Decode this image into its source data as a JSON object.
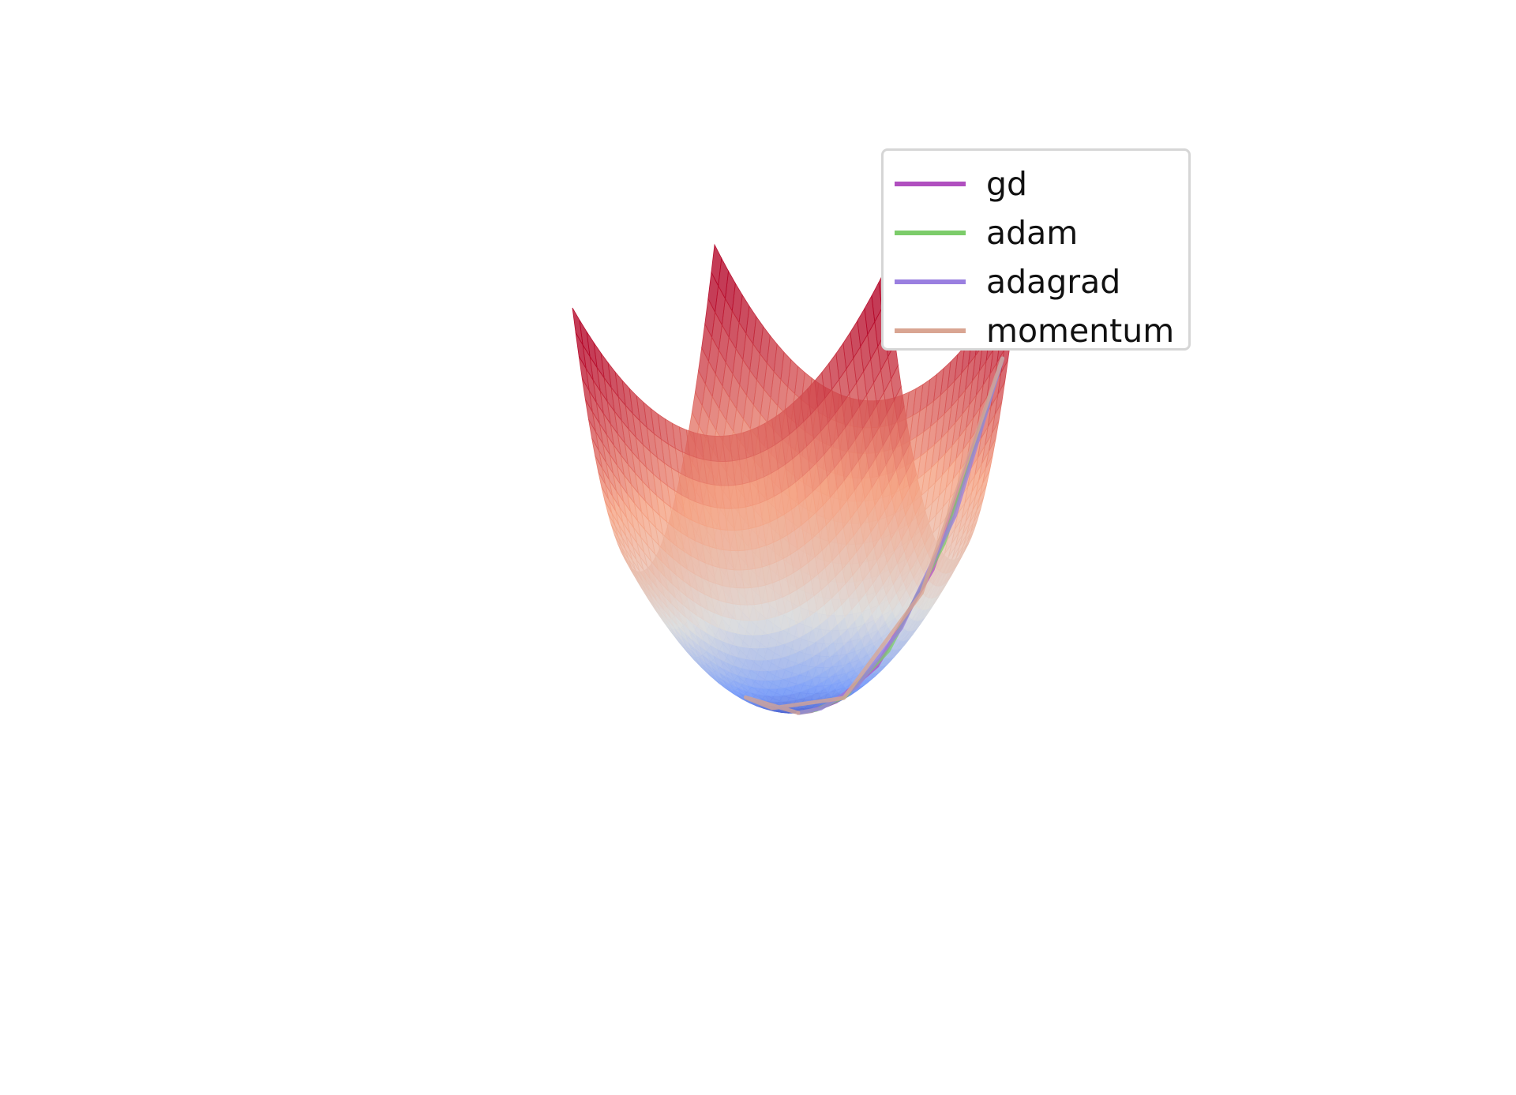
{
  "chart_data": {
    "type": "surface3d",
    "title": "",
    "xlabel": "",
    "ylabel": "",
    "zlabel": "",
    "axes_visible": false,
    "grid": false,
    "colormap": "coolwarm",
    "surface": {
      "function": "paraboloid x^2 + 2*y^2",
      "x_range": [
        -2,
        2
      ],
      "y_range": [
        -2,
        2
      ]
    },
    "legend_position": "top-right",
    "series": [
      {
        "name": "gd",
        "color": "#b04fbf",
        "path": [
          [
            1.9,
            1.7
          ],
          [
            1.3,
            1.0
          ],
          [
            0.8,
            0.5
          ],
          [
            0.4,
            0.2
          ],
          [
            0.15,
            0.05
          ],
          [
            0.0,
            0.0
          ]
        ]
      },
      {
        "name": "adam",
        "color": "#7ccc6a",
        "path": [
          [
            1.9,
            1.7
          ],
          [
            1.4,
            1.1
          ],
          [
            0.9,
            0.6
          ],
          [
            0.5,
            0.25
          ],
          [
            0.2,
            0.08
          ],
          [
            0.0,
            0.0
          ]
        ]
      },
      {
        "name": "adagrad",
        "color": "#9a7fe0",
        "path": [
          [
            1.9,
            1.7
          ],
          [
            1.5,
            1.2
          ],
          [
            1.0,
            0.75
          ],
          [
            0.6,
            0.35
          ],
          [
            0.25,
            0.1
          ],
          [
            0.0,
            0.0
          ]
        ]
      },
      {
        "name": "momentum",
        "color": "#d9a592",
        "path": [
          [
            1.9,
            1.7
          ],
          [
            1.2,
            0.9
          ],
          [
            0.5,
            0.2
          ],
          [
            -0.2,
            -0.3
          ],
          [
            -0.5,
            -0.4
          ],
          [
            0.0,
            0.0
          ]
        ]
      }
    ]
  }
}
